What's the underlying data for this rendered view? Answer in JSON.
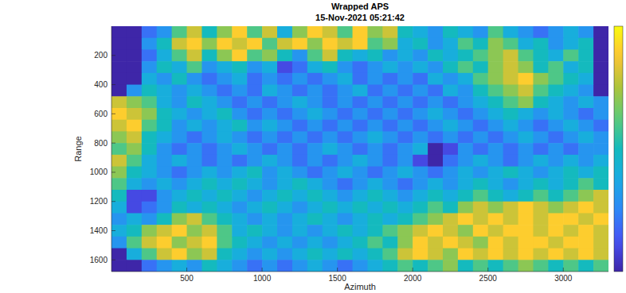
{
  "chart_data": {
    "type": "heatmap",
    "title": "Wrapped APS",
    "subtitle": "15-Nov-2021 05:21:42",
    "xlabel": "Azimuth",
    "ylabel": "Range",
    "xlim": [
      0,
      3300
    ],
    "ylim": [
      1680,
      0
    ],
    "xticks": [
      500,
      1000,
      1500,
      2000,
      2500,
      3000
    ],
    "yticks": [
      200,
      400,
      600,
      800,
      1000,
      1200,
      1400,
      1600
    ],
    "colorbar_lim": [
      0,
      1
    ],
    "x": [
      50,
      150,
      250,
      350,
      450,
      550,
      650,
      750,
      850,
      950,
      1050,
      1150,
      1250,
      1350,
      1450,
      1550,
      1650,
      1750,
      1850,
      1950,
      2050,
      2150,
      2250,
      2350,
      2450,
      2550,
      2650,
      2750,
      2850,
      2950,
      3050,
      3150,
      3250
    ],
    "y": [
      40,
      120,
      200,
      280,
      360,
      440,
      520,
      600,
      680,
      760,
      840,
      920,
      1000,
      1080,
      1160,
      1240,
      1320,
      1400,
      1480,
      1560,
      1640
    ],
    "cells": [
      [
        0,
        0,
        0.2,
        0.3,
        0.6,
        0.8,
        0.5,
        0.7,
        0.9,
        0.6,
        0.8,
        0.4,
        0.7,
        0.9,
        0.8,
        0.6,
        0.9,
        0.7,
        0.8,
        0.5,
        0.4,
        0.3,
        0.5,
        0.4,
        0.3,
        0.6,
        0.4,
        0.3,
        0.2,
        0.3,
        0.4,
        0.3,
        0
      ],
      [
        0,
        0,
        0.3,
        0.5,
        0.8,
        0.9,
        0.7,
        0.9,
        0.8,
        0.9,
        0.6,
        0.8,
        0.9,
        0.7,
        0.9,
        0.8,
        0.9,
        0.6,
        0.7,
        0.4,
        0.5,
        0.3,
        0.4,
        0.6,
        0.5,
        0.7,
        0.6,
        0.4,
        0.5,
        0.3,
        0.4,
        0.5,
        0
      ],
      [
        0,
        0,
        0.2,
        0.4,
        0.6,
        0.8,
        0.5,
        0.7,
        0.9,
        0.6,
        0.7,
        0.5,
        0.3,
        0.6,
        0.8,
        0.5,
        0.4,
        0.5,
        0.3,
        0.4,
        0.3,
        0.5,
        0.4,
        0.5,
        0.6,
        0.7,
        0.8,
        0.6,
        0.5,
        0.4,
        0.6,
        0.5,
        0
      ],
      [
        0,
        0,
        0.3,
        0.5,
        0.4,
        0.6,
        0.3,
        0.4,
        0.5,
        0.3,
        0.4,
        0.1,
        0.2,
        0.4,
        0.5,
        0.3,
        0.2,
        0.3,
        0.4,
        0.3,
        0.4,
        0.3,
        0.5,
        0.6,
        0.5,
        0.7,
        0.8,
        0.7,
        0.5,
        0.6,
        0.4,
        0.5,
        0
      ],
      [
        0,
        0,
        0.4,
        0.3,
        0.5,
        0.3,
        0.2,
        0.3,
        0.4,
        0.2,
        0.3,
        0.2,
        0.3,
        0.2,
        0.3,
        0.4,
        0.2,
        0.3,
        0.2,
        0.3,
        0.2,
        0.4,
        0.3,
        0.4,
        0.6,
        0.7,
        0.8,
        0.9,
        0.7,
        0.6,
        0.5,
        0.4,
        0
      ],
      [
        0,
        0.3,
        0.5,
        0.4,
        0.3,
        0.4,
        0.3,
        0.2,
        0.3,
        0.2,
        0.4,
        0.3,
        0.2,
        0.3,
        0.2,
        0.3,
        0.4,
        0.2,
        0.3,
        0.2,
        0.3,
        0.2,
        0.4,
        0.3,
        0.5,
        0.6,
        0.7,
        0.8,
        0.6,
        0.5,
        0.4,
        0.3,
        0
      ],
      [
        0.8,
        0.7,
        0.6,
        0.4,
        0.3,
        0.5,
        0.4,
        0.3,
        0.2,
        0.3,
        0.2,
        0.3,
        0.4,
        0.3,
        0.2,
        0.3,
        0.2,
        0.3,
        0.2,
        0.3,
        0.2,
        0.3,
        0.2,
        0.3,
        0.4,
        0.5,
        0.6,
        0.7,
        0.5,
        0.4,
        0.3,
        0.4,
        0.3
      ],
      [
        0.9,
        0.8,
        0.7,
        0.5,
        0.4,
        0.3,
        0.4,
        0.5,
        0.3,
        0.2,
        0.3,
        0.2,
        0.3,
        0.4,
        0.3,
        0.2,
        0.3,
        0.2,
        0.3,
        0.2,
        0.3,
        0.4,
        0.3,
        0.2,
        0.3,
        0.4,
        0.5,
        0.4,
        0.3,
        0.4,
        0.3,
        0.2,
        0.3
      ],
      [
        0.8,
        0.9,
        0.6,
        0.5,
        0.3,
        0.4,
        0.3,
        0.4,
        0.5,
        0.3,
        0.4,
        0.3,
        0.2,
        0.3,
        0.2,
        0.3,
        0.2,
        0.3,
        0.2,
        0.3,
        0.2,
        0.3,
        0.4,
        0.3,
        0.2,
        0.3,
        0.4,
        0.3,
        0.2,
        0.3,
        0.4,
        0.3,
        0.2
      ],
      [
        0.7,
        0.8,
        0.5,
        0.4,
        0.3,
        0.2,
        0.3,
        0.4,
        0.3,
        0.2,
        0.3,
        0.2,
        0.3,
        0.2,
        0.3,
        0.2,
        0.3,
        0.4,
        0.3,
        0.2,
        0.3,
        0.2,
        0.3,
        0.2,
        0.3,
        0.2,
        0.3,
        0.4,
        0.3,
        0.2,
        0.3,
        0.4,
        0.3
      ],
      [
        0.6,
        0.7,
        0.5,
        0.3,
        0.2,
        0.3,
        0.2,
        0.3,
        0.4,
        0.3,
        0.2,
        0.3,
        0.2,
        0.3,
        0.4,
        0.3,
        0.2,
        0.3,
        0.2,
        0.3,
        0.4,
        0,
        0.1,
        0.3,
        0.2,
        0.3,
        0.2,
        0.3,
        0.2,
        0.3,
        0.2,
        0.3,
        0.3
      ],
      [
        0.8,
        0.6,
        0.4,
        0.3,
        0.4,
        0.3,
        0.2,
        0.3,
        0.2,
        0.3,
        0.4,
        0.3,
        0.2,
        0.3,
        0.2,
        0.3,
        0.4,
        0.3,
        0.2,
        0.3,
        0.1,
        0,
        0.2,
        0.3,
        0.4,
        0.3,
        0.2,
        0.3,
        0.4,
        0.3,
        0.4,
        0.3,
        0.4
      ],
      [
        0.7,
        0.5,
        0.4,
        0.3,
        0.2,
        0.3,
        0.4,
        0.3,
        0.4,
        0.5,
        0.3,
        0.4,
        0.3,
        0.2,
        0.3,
        0.4,
        0.3,
        0.2,
        0.3,
        0.4,
        0.3,
        0.2,
        0.3,
        0.4,
        0.3,
        0.4,
        0.5,
        0.4,
        0.3,
        0.4,
        0.5,
        0.4,
        0.5
      ],
      [
        0.6,
        0.4,
        0.3,
        0.4,
        0.3,
        0.4,
        0.5,
        0.4,
        0.5,
        0.4,
        0.3,
        0.4,
        0.5,
        0.4,
        0.3,
        0.2,
        0.3,
        0.4,
        0.3,
        0.2,
        0.3,
        0.4,
        0.3,
        0.4,
        0.5,
        0.4,
        0.3,
        0.4,
        0.5,
        0.4,
        0.5,
        0.6,
        0.5
      ],
      [
        0.5,
        0.1,
        0.1,
        0.3,
        0.4,
        0.5,
        0.4,
        0.5,
        0.4,
        0.3,
        0.4,
        0.5,
        0.4,
        0.5,
        0.4,
        0.3,
        0.4,
        0.5,
        0.4,
        0.3,
        0.4,
        0.5,
        0.4,
        0.5,
        0.6,
        0.5,
        0.4,
        0.5,
        0.6,
        0.5,
        0.6,
        0.7,
        0.8
      ],
      [
        0.4,
        0.1,
        0.2,
        0.3,
        0.5,
        0.4,
        0.5,
        0.4,
        0.3,
        0.4,
        0.5,
        0.4,
        0.3,
        0.4,
        0.5,
        0.4,
        0.5,
        0.4,
        0.5,
        0.4,
        0.5,
        0.6,
        0.5,
        0.7,
        0.8,
        0.7,
        0.8,
        0.9,
        0.8,
        0.7,
        0.8,
        0.9,
        0.8
      ],
      [
        0.3,
        0.4,
        0.3,
        0.5,
        0.7,
        0.8,
        0.6,
        0.5,
        0.4,
        0.3,
        0.4,
        0.3,
        0.4,
        0.5,
        0.4,
        0.3,
        0.4,
        0.5,
        0.4,
        0.5,
        0.6,
        0.7,
        0.8,
        0.9,
        0.8,
        0.9,
        0.8,
        0.9,
        0.8,
        0.9,
        0.9,
        0.8,
        0.9
      ],
      [
        0.4,
        0.5,
        0.7,
        0.8,
        0.9,
        0.7,
        0.8,
        0.6,
        0.4,
        0.5,
        0.4,
        0.3,
        0.4,
        0.3,
        0.4,
        0.5,
        0.4,
        0.5,
        0.6,
        0.7,
        0.8,
        0.9,
        0.8,
        0.7,
        0.9,
        0.8,
        0.9,
        0.9,
        0.8,
        0.9,
        0.8,
        0.9,
        0.8
      ],
      [
        0.3,
        0.6,
        0.8,
        0.9,
        0.7,
        0.8,
        0.9,
        0.6,
        0.5,
        0.4,
        0.3,
        0.4,
        0.3,
        0.4,
        0.3,
        0.4,
        0.5,
        0.6,
        0.5,
        0.7,
        0.9,
        0.8,
        0.9,
        0.8,
        0.7,
        0.9,
        0.8,
        0.9,
        0.9,
        0.8,
        0.9,
        0.9,
        0.8
      ],
      [
        0,
        0.4,
        0.6,
        0.8,
        0.9,
        0.7,
        0.8,
        0.5,
        0.4,
        0.3,
        0.4,
        0.3,
        0.4,
        0.5,
        0.4,
        0.5,
        0.4,
        0.5,
        0.6,
        0.8,
        0.9,
        0.8,
        0.7,
        0.9,
        0.8,
        0.9,
        0.8,
        0.9,
        0.8,
        0.9,
        0.8,
        0.9,
        0.8
      ],
      [
        0,
        0,
        0.2,
        0.3,
        0.4,
        0.3,
        0.5,
        0.4,
        0.3,
        0.2,
        0.3,
        0.2,
        0.3,
        0.4,
        0.3,
        0.2,
        0.3,
        0.4,
        0.5,
        0.6,
        0.5,
        0.6,
        0.7,
        0.5,
        0.6,
        0.5,
        0.6,
        0.7,
        0.6,
        0.5,
        0.6,
        0.5,
        0.6
      ]
    ]
  }
}
